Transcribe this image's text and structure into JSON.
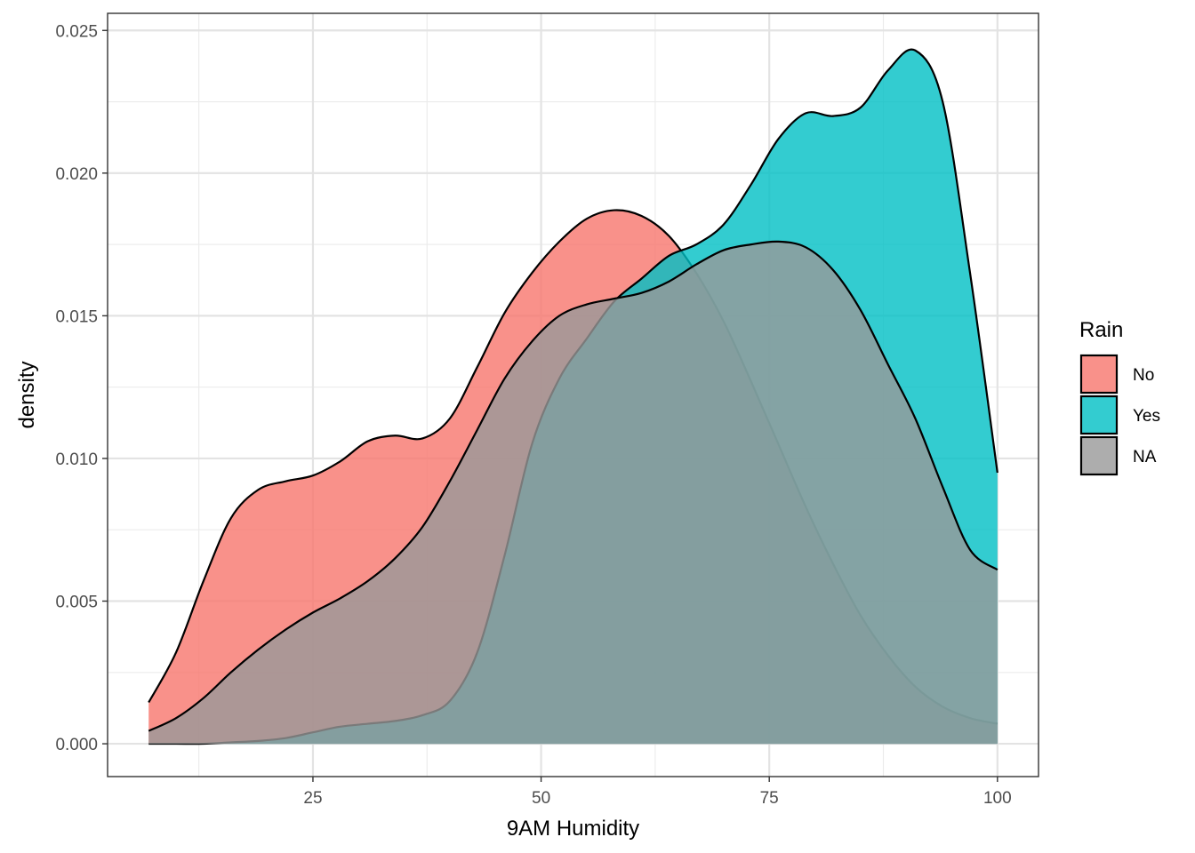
{
  "chart_data": {
    "type": "area",
    "subtype": "density",
    "xlabel": "9AM Humidity",
    "ylabel": "density",
    "xlim": [
      2.5,
      104.5
    ],
    "ylim": [
      -0.00115,
      0.0256
    ],
    "x_ticks": [
      25,
      50,
      75,
      100
    ],
    "x_tick_labels": [
      "25",
      "50",
      "75",
      "100"
    ],
    "y_ticks": [
      0.0,
      0.005,
      0.01,
      0.015,
      0.02,
      0.025
    ],
    "y_tick_labels": [
      "0.000",
      "0.005",
      "0.010",
      "0.015",
      "0.020",
      "0.025"
    ],
    "grid": true,
    "legend": {
      "title": "Rain",
      "position": "right"
    },
    "series": [
      {
        "name": "No",
        "color": "#F8766D",
        "x": [
          7,
          10,
          13,
          16,
          19,
          22,
          25,
          28,
          31,
          34,
          37,
          40,
          43,
          46,
          49,
          52,
          55,
          58,
          61,
          64,
          67,
          70,
          73,
          76,
          79,
          82,
          85,
          88,
          91,
          94,
          97,
          100
        ],
        "y": [
          0.00145,
          0.0032,
          0.0057,
          0.0079,
          0.0089,
          0.0092,
          0.0094,
          0.0099,
          0.0106,
          0.0108,
          0.0107,
          0.0114,
          0.0132,
          0.0151,
          0.0165,
          0.0176,
          0.0184,
          0.0187,
          0.0185,
          0.0178,
          0.0165,
          0.0148,
          0.0127,
          0.0105,
          0.0083,
          0.0063,
          0.0045,
          0.0031,
          0.002,
          0.0013,
          0.0009,
          0.0007
        ]
      },
      {
        "name": "Yes",
        "color": "#00BFC4",
        "x": [
          7,
          10,
          13,
          16,
          19,
          22,
          25,
          28,
          31,
          34,
          37,
          40,
          43,
          46,
          49,
          52,
          55,
          58,
          61,
          64,
          67,
          70,
          73,
          76,
          79,
          82,
          85,
          88,
          91,
          94,
          97,
          100
        ],
        "y": [
          0.0,
          0.0,
          0.0,
          5e-05,
          0.0001,
          0.0002,
          0.0004,
          0.0006,
          0.0007,
          0.0008,
          0.001,
          0.0015,
          0.0032,
          0.0066,
          0.0105,
          0.0128,
          0.0142,
          0.0155,
          0.0163,
          0.0171,
          0.0175,
          0.0182,
          0.0196,
          0.0212,
          0.0221,
          0.022,
          0.0223,
          0.0236,
          0.0243,
          0.0225,
          0.0165,
          0.0095
        ]
      },
      {
        "name": "NA",
        "color": "#999999",
        "x": [
          7,
          10,
          13,
          16,
          19,
          22,
          25,
          28,
          31,
          34,
          37,
          40,
          43,
          46,
          49,
          52,
          55,
          58,
          61,
          64,
          67,
          70,
          73,
          76,
          79,
          82,
          85,
          88,
          91,
          94,
          97,
          100
        ],
        "y": [
          0.00045,
          0.0009,
          0.0016,
          0.0025,
          0.0033,
          0.004,
          0.0046,
          0.0051,
          0.0057,
          0.0065,
          0.0076,
          0.0092,
          0.011,
          0.0128,
          0.0141,
          0.015,
          0.0154,
          0.0156,
          0.0158,
          0.0162,
          0.0168,
          0.0173,
          0.0175,
          0.0176,
          0.0174,
          0.0166,
          0.0152,
          0.0133,
          0.0114,
          0.009,
          0.0068,
          0.0061
        ]
      }
    ]
  }
}
